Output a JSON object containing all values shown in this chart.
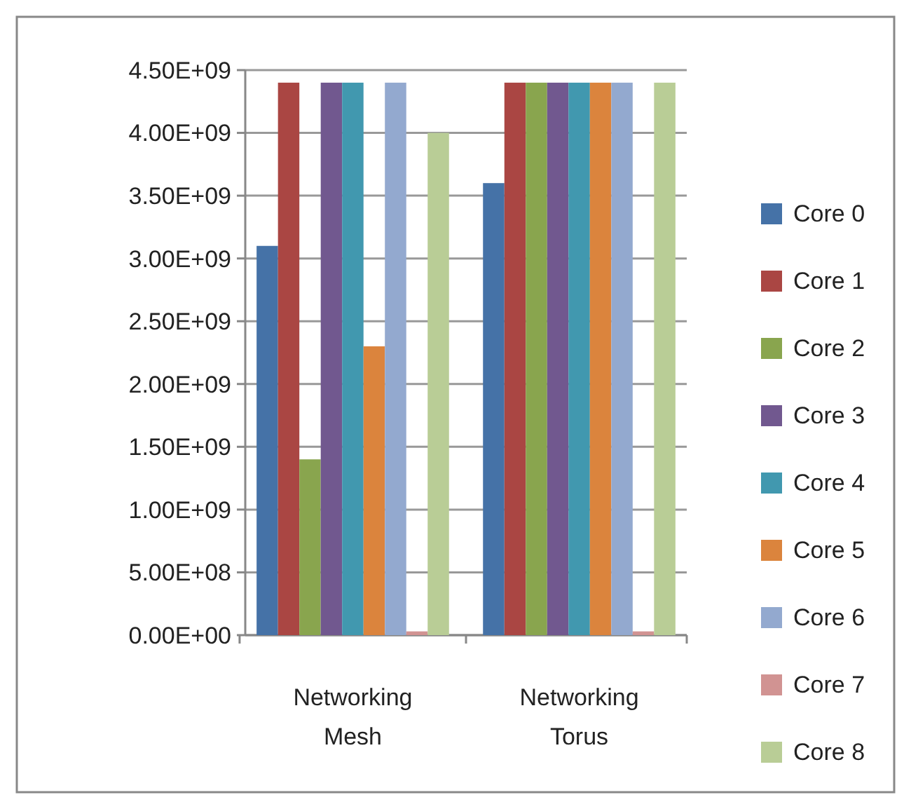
{
  "chart_data": {
    "type": "bar",
    "categories": [
      "Networking Mesh",
      "Networking Torus"
    ],
    "series": [
      {
        "name": "Core 0",
        "color": "#4572a7",
        "values": [
          3100000000,
          3600000000
        ]
      },
      {
        "name": "Core 1",
        "color": "#aa4643",
        "values": [
          4400000000,
          4400000000
        ]
      },
      {
        "name": "Core 2",
        "color": "#89a54e",
        "values": [
          1400000000,
          4400000000
        ]
      },
      {
        "name": "Core 3",
        "color": "#71588f",
        "values": [
          4400000000,
          4400000000
        ]
      },
      {
        "name": "Core 4",
        "color": "#4198af",
        "values": [
          4400000000,
          4400000000
        ]
      },
      {
        "name": "Core 5",
        "color": "#db843d",
        "values": [
          2300000000,
          4400000000
        ]
      },
      {
        "name": "Core 6",
        "color": "#93a9cf",
        "values": [
          4400000000,
          4400000000
        ]
      },
      {
        "name": "Core 7",
        "color": "#d19392",
        "values": [
          30000000,
          30000000
        ]
      },
      {
        "name": "Core 8",
        "color": "#b9cd96",
        "values": [
          4000000000,
          4400000000
        ]
      }
    ],
    "ylim": [
      0,
      4500000000
    ],
    "yticks": [
      {
        "value": 0,
        "label": "0.00E+00"
      },
      {
        "value": 500000000,
        "label": "5.00E+08"
      },
      {
        "value": 1000000000,
        "label": "1.00E+09"
      },
      {
        "value": 1500000000,
        "label": "1.50E+09"
      },
      {
        "value": 2000000000,
        "label": "2.00E+09"
      },
      {
        "value": 2500000000,
        "label": "2.50E+09"
      },
      {
        "value": 3000000000,
        "label": "3.00E+09"
      },
      {
        "value": 3500000000,
        "label": "3.50E+09"
      },
      {
        "value": 4000000000,
        "label": "4.00E+09"
      },
      {
        "value": 4500000000,
        "label": "4.50E+09"
      }
    ],
    "grid": "y",
    "legend": "right"
  }
}
